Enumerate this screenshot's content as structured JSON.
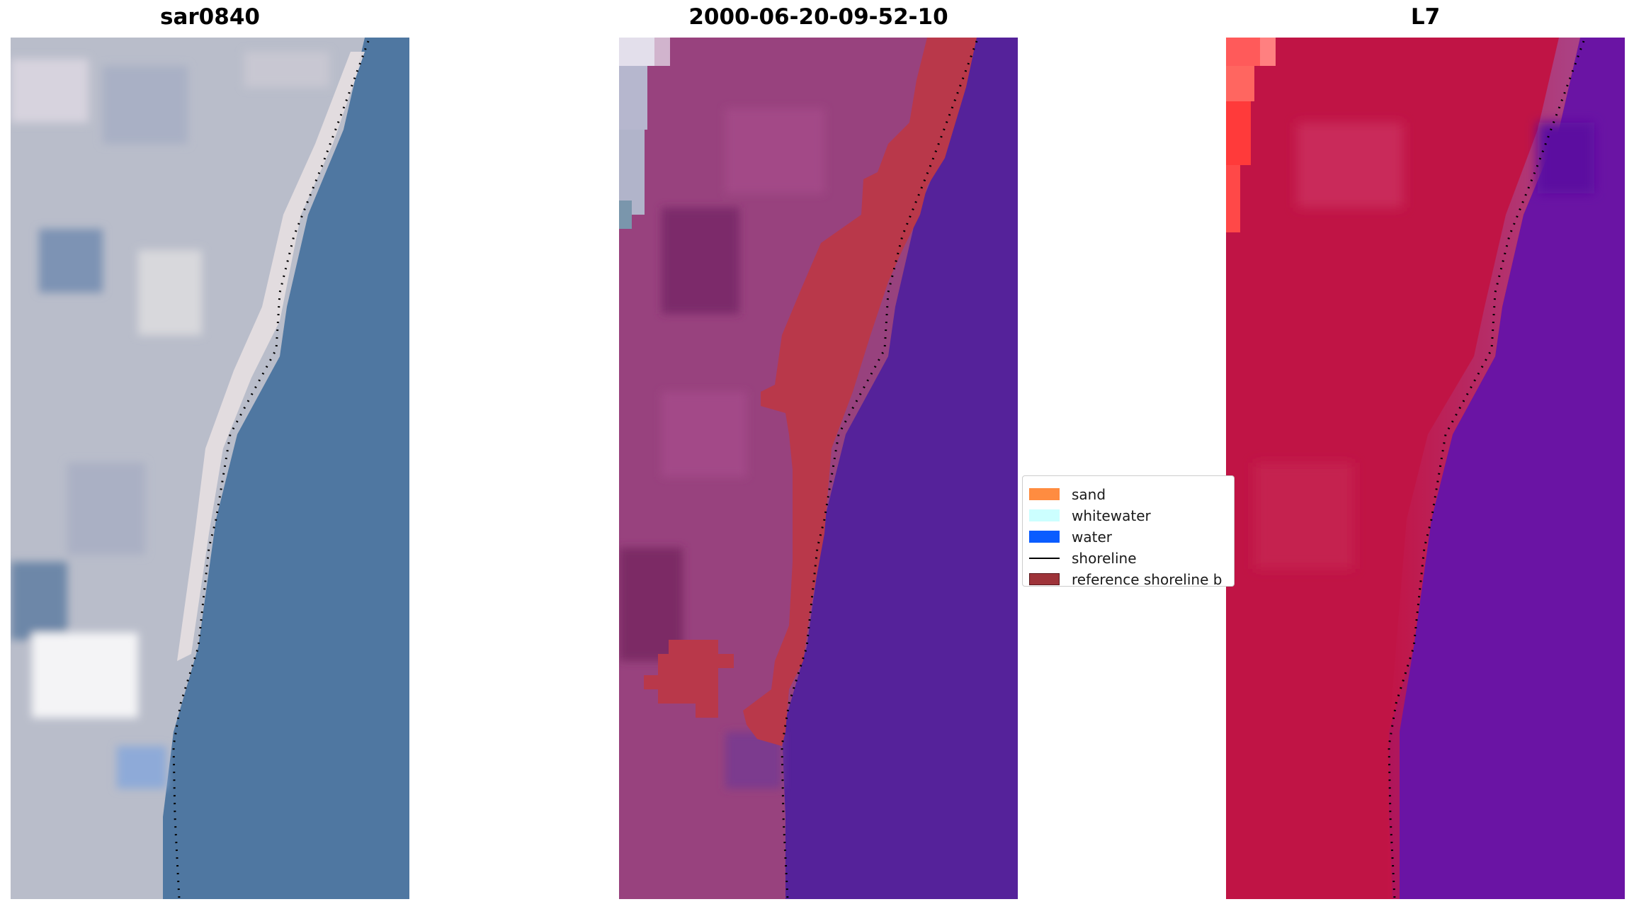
{
  "panels": [
    {
      "title": "sar0840"
    },
    {
      "title": "2000-06-20-09-52-10"
    },
    {
      "title": "L7"
    }
  ],
  "legend": {
    "items": [
      {
        "label": "sand",
        "color": "#ff8c40",
        "kind": "patch"
      },
      {
        "label": "whitewater",
        "color": "#ccffff",
        "kind": "patch"
      },
      {
        "label": "water",
        "color": "#0a5cff",
        "kind": "patch"
      },
      {
        "label": "shoreline",
        "color": "#000000",
        "kind": "line"
      },
      {
        "label": "reference shoreline b",
        "color": "#9e3339",
        "kind": "patch"
      }
    ]
  }
}
